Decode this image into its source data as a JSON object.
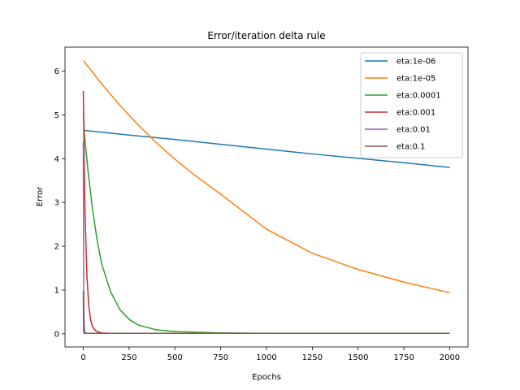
{
  "chart_data": {
    "type": "line",
    "title": "Error/iteration delta rule",
    "xlabel": "Epochs",
    "ylabel": "Error",
    "xlim": [
      -100,
      2100
    ],
    "ylim": [
      -0.3,
      6.55
    ],
    "xticks": [
      0,
      250,
      500,
      750,
      1000,
      1250,
      1500,
      1750,
      2000
    ],
    "yticks": [
      0,
      1,
      2,
      3,
      4,
      5,
      6
    ],
    "legend_position": "top-right",
    "grid": false,
    "series": [
      {
        "name": "eta:1e-06",
        "color": "#1f77b4",
        "x": [
          0,
          250,
          500,
          750,
          1000,
          1250,
          1500,
          1750,
          2000
        ],
        "y": [
          4.65,
          4.54,
          4.44,
          4.33,
          4.22,
          4.11,
          4.01,
          3.91,
          3.8
        ]
      },
      {
        "name": "eta:1e-05",
        "color": "#ff7f0e",
        "x": [
          0,
          100,
          200,
          300,
          400,
          500,
          600,
          750,
          1000,
          1250,
          1500,
          1750,
          2000
        ],
        "y": [
          6.24,
          5.71,
          5.22,
          4.77,
          4.36,
          3.99,
          3.65,
          3.19,
          2.39,
          1.84,
          1.47,
          1.18,
          0.94
        ]
      },
      {
        "name": "eta:0.0001",
        "color": "#2ca02c",
        "x": [
          0,
          5,
          25,
          50,
          75,
          100,
          150,
          200,
          250,
          300,
          400,
          500,
          750,
          1000,
          1500,
          2000
        ],
        "y": [
          5.1,
          4.6,
          3.75,
          2.85,
          2.15,
          1.6,
          0.95,
          0.55,
          0.33,
          0.2,
          0.09,
          0.05,
          0.02,
          0.01,
          0.01,
          0.01
        ]
      },
      {
        "name": "eta:0.001",
        "color": "#d62728",
        "x": [
          0,
          5,
          10,
          20,
          30,
          40,
          50,
          70,
          100,
          150,
          200,
          500,
          1000,
          2000
        ],
        "y": [
          5.55,
          3.9,
          2.65,
          1.3,
          0.63,
          0.32,
          0.16,
          0.06,
          0.02,
          0.01,
          0.01,
          0.01,
          0.01,
          0.01
        ]
      },
      {
        "name": "eta:0.01",
        "color": "#9467bd",
        "x": [
          0,
          1,
          2,
          3,
          5,
          8,
          12,
          20,
          50,
          500,
          2000
        ],
        "y": [
          4.4,
          2.4,
          1.25,
          0.65,
          0.2,
          0.05,
          0.02,
          0.01,
          0.01,
          0.01,
          0.01
        ]
      },
      {
        "name": "eta:0.1",
        "color": "#8c564b",
        "x": [
          0,
          1,
          2,
          3,
          5,
          10,
          50,
          500,
          2000
        ],
        "y": [
          0.98,
          0.2,
          0.05,
          0.02,
          0.01,
          0.01,
          0.01,
          0.01,
          0.01
        ]
      }
    ]
  }
}
